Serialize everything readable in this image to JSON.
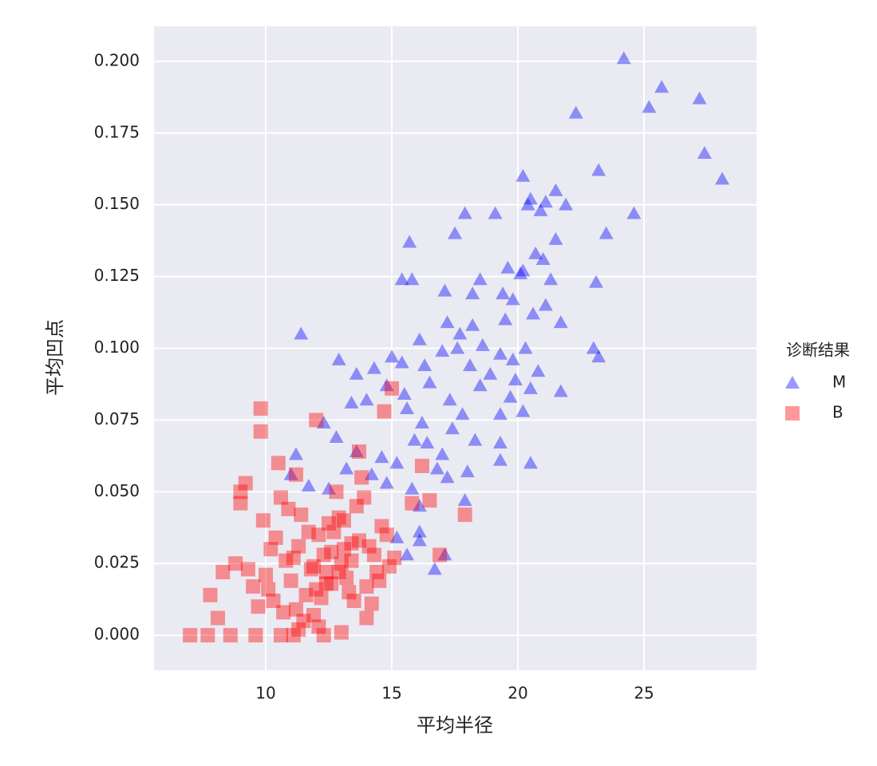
{
  "chart_data": {
    "type": "scatter",
    "x_label": "平均半径",
    "y_label": "平均凹点",
    "legend_title": "诊断结果",
    "xlim": [
      5.57,
      29.46
    ],
    "ylim": [
      -0.0122,
      0.2122
    ],
    "xticks": [
      10,
      15,
      20,
      25
    ],
    "yticks": [
      {
        "value": 0,
        "label": "0.000"
      },
      {
        "value": 0.025,
        "label": "0.025"
      },
      {
        "value": 0.05,
        "label": "0.050"
      },
      {
        "value": 0.075,
        "label": "0.075"
      },
      {
        "value": 0.1,
        "label": "0.100"
      },
      {
        "value": 0.125,
        "label": "0.125"
      },
      {
        "value": 0.15,
        "label": "0.150"
      },
      {
        "value": 0.175,
        "label": "0.175"
      },
      {
        "value": 0.2,
        "label": "0.200"
      }
    ],
    "grid": true,
    "alpha": 0.4,
    "series": [
      {
        "name": "M",
        "color": "#0000ff",
        "marker": "triangle",
        "x": [
          24.2,
          25.7,
          25.2,
          27.2,
          22.3,
          27.4,
          28.1,
          23.2,
          20.2,
          20.5,
          20.9,
          21.1,
          21.5,
          21.9,
          24.6,
          19.1,
          17.9,
          20.4,
          17.5,
          15.7,
          23.5,
          21.5,
          19.6,
          20.2,
          20.1,
          21.0,
          20.7,
          15.4,
          15.8,
          18.5,
          21.3,
          23.1,
          17.1,
          19.4,
          18.2,
          19.8,
          21.1,
          20.6,
          19.5,
          17.2,
          21.7,
          11.4,
          17.7,
          18.2,
          16.1,
          14.3,
          12.9,
          13.6,
          15.0,
          15.4,
          16.3,
          17.0,
          17.6,
          18.6,
          19.3,
          20.3,
          19.8,
          23.0,
          23.2,
          12.3,
          12.8,
          13.4,
          14.0,
          14.8,
          15.5,
          16.5,
          17.3,
          18.5,
          19.7,
          20.5,
          21.7,
          20.2,
          19.3,
          17.8,
          16.2,
          15.6,
          16.4,
          17.0,
          15.9,
          16.8,
          17.2,
          18.0,
          19.3,
          20.5,
          19.3,
          18.3,
          15.2,
          14.6,
          13.6,
          14.2,
          13.2,
          11.2,
          11.0,
          11.7,
          12.5,
          14.8,
          15.8,
          17.9,
          16.1,
          16.1,
          15.2,
          16.1,
          15.6,
          17.1,
          16.7,
          18.9,
          19.9,
          20.8,
          18.1,
          17.4
        ],
        "values": [
          0.201,
          0.191,
          0.184,
          0.187,
          0.182,
          0.168,
          0.159,
          0.162,
          0.16,
          0.152,
          0.148,
          0.151,
          0.155,
          0.15,
          0.147,
          0.147,
          0.147,
          0.15,
          0.14,
          0.137,
          0.14,
          0.138,
          0.128,
          0.127,
          0.126,
          0.131,
          0.133,
          0.124,
          0.124,
          0.124,
          0.124,
          0.123,
          0.12,
          0.119,
          0.119,
          0.117,
          0.115,
          0.112,
          0.11,
          0.109,
          0.109,
          0.105,
          0.105,
          0.108,
          0.103,
          0.093,
          0.096,
          0.091,
          0.097,
          0.095,
          0.094,
          0.099,
          0.1,
          0.101,
          0.098,
          0.1,
          0.096,
          0.1,
          0.097,
          0.074,
          0.069,
          0.081,
          0.082,
          0.087,
          0.084,
          0.088,
          0.082,
          0.087,
          0.083,
          0.086,
          0.085,
          0.078,
          0.077,
          0.077,
          0.074,
          0.079,
          0.067,
          0.063,
          0.068,
          0.058,
          0.055,
          0.057,
          0.061,
          0.06,
          0.067,
          0.068,
          0.06,
          0.062,
          0.064,
          0.056,
          0.058,
          0.063,
          0.056,
          0.052,
          0.051,
          0.053,
          0.051,
          0.047,
          0.045,
          0.036,
          0.034,
          0.033,
          0.028,
          0.028,
          0.023,
          0.091,
          0.089,
          0.092,
          0.094,
          0.072
        ]
      },
      {
        "name": "B",
        "color": "#ff0000",
        "marker": "square",
        "x": [
          9.8,
          9.8,
          12.0,
          14.7,
          10.5,
          11.2,
          9.2,
          9.0,
          9.0,
          9.9,
          8.8,
          8.3,
          7.8,
          8.1,
          7.0,
          7.7,
          8.6,
          9.6,
          10.6,
          11.1,
          12.3,
          13.0,
          15.0,
          16.2,
          16.5,
          17.9,
          16.9,
          15.8,
          9.5,
          10.0,
          10.3,
          10.8,
          11.0,
          11.3,
          11.6,
          11.9,
          12.1,
          12.4,
          12.6,
          12.9,
          13.1,
          13.4,
          13.7,
          14.0,
          14.3,
          14.6,
          14.9,
          10.2,
          10.7,
          11.4,
          11.8,
          12.2,
          12.7,
          13.2,
          13.6,
          14.1,
          14.5,
          9.7,
          10.4,
          11.1,
          11.5,
          12.0,
          12.5,
          13.0,
          13.5,
          13.9,
          14.4,
          14.8,
          10.9,
          11.7,
          12.3,
          12.8,
          13.3,
          13.8,
          11.2,
          12.1,
          12.9,
          13.7,
          10.6,
          11.9,
          12.6,
          13.4,
          14.2,
          15.1,
          9.3,
          10.1,
          11.3,
          12.4,
          13.1,
          14.0
        ],
        "values": [
          0.079,
          0.071,
          0.075,
          0.078,
          0.06,
          0.056,
          0.053,
          0.05,
          0.046,
          0.04,
          0.025,
          0.022,
          0.014,
          0.006,
          0.0,
          0.0,
          0.0,
          0.0,
          0.0,
          0.0,
          0.0,
          0.001,
          0.086,
          0.059,
          0.047,
          0.042,
          0.028,
          0.046,
          0.017,
          0.021,
          0.012,
          0.026,
          0.019,
          0.031,
          0.014,
          0.024,
          0.035,
          0.018,
          0.029,
          0.022,
          0.04,
          0.026,
          0.033,
          0.017,
          0.028,
          0.038,
          0.024,
          0.03,
          0.008,
          0.042,
          0.023,
          0.013,
          0.036,
          0.02,
          0.045,
          0.031,
          0.019,
          0.01,
          0.034,
          0.027,
          0.005,
          0.016,
          0.039,
          0.025,
          0.012,
          0.048,
          0.022,
          0.035,
          0.044,
          0.036,
          0.028,
          0.05,
          0.015,
          0.055,
          0.009,
          0.003,
          0.041,
          0.064,
          0.048,
          0.007,
          0.018,
          0.032,
          0.011,
          0.027,
          0.023,
          0.016,
          0.002,
          0.022,
          0.03,
          0.006
        ]
      }
    ]
  }
}
